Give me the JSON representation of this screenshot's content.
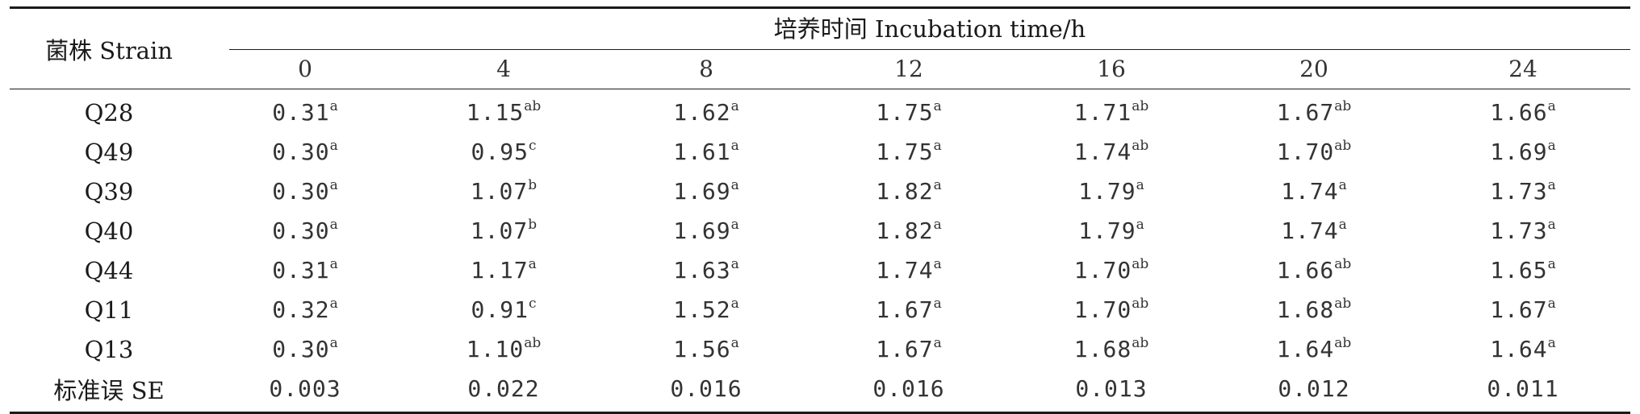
{
  "table": {
    "strain_header": "菌株 Strain",
    "time_header": "培养时间 Incubation time/h",
    "hours": [
      "0",
      "4",
      "8",
      "12",
      "16",
      "20",
      "24"
    ],
    "rows": [
      {
        "strain": "Q28",
        "cells": [
          {
            "v": "0.31",
            "s": "a"
          },
          {
            "v": "1.15",
            "s": "ab"
          },
          {
            "v": "1.62",
            "s": "a"
          },
          {
            "v": "1.75",
            "s": "a"
          },
          {
            "v": "1.71",
            "s": "ab"
          },
          {
            "v": "1.67",
            "s": "ab"
          },
          {
            "v": "1.66",
            "s": "a"
          }
        ]
      },
      {
        "strain": "Q49",
        "cells": [
          {
            "v": "0.30",
            "s": "a"
          },
          {
            "v": "0.95",
            "s": "c"
          },
          {
            "v": "1.61",
            "s": "a"
          },
          {
            "v": "1.75",
            "s": "a"
          },
          {
            "v": "1.74",
            "s": "ab"
          },
          {
            "v": "1.70",
            "s": "ab"
          },
          {
            "v": "1.69",
            "s": "a"
          }
        ]
      },
      {
        "strain": "Q39",
        "cells": [
          {
            "v": "0.30",
            "s": "a"
          },
          {
            "v": "1.07",
            "s": "b"
          },
          {
            "v": "1.69",
            "s": "a"
          },
          {
            "v": "1.82",
            "s": "a"
          },
          {
            "v": "1.79",
            "s": "a"
          },
          {
            "v": "1.74",
            "s": "a"
          },
          {
            "v": "1.73",
            "s": "a"
          }
        ]
      },
      {
        "strain": "Q40",
        "cells": [
          {
            "v": "0.30",
            "s": "a"
          },
          {
            "v": "1.07",
            "s": "b"
          },
          {
            "v": "1.69",
            "s": "a"
          },
          {
            "v": "1.82",
            "s": "a"
          },
          {
            "v": "1.79",
            "s": "a"
          },
          {
            "v": "1.74",
            "s": "a"
          },
          {
            "v": "1.73",
            "s": "a"
          }
        ]
      },
      {
        "strain": "Q44",
        "cells": [
          {
            "v": "0.31",
            "s": "a"
          },
          {
            "v": "1.17",
            "s": "a"
          },
          {
            "v": "1.63",
            "s": "a"
          },
          {
            "v": "1.74",
            "s": "a"
          },
          {
            "v": "1.70",
            "s": "ab"
          },
          {
            "v": "1.66",
            "s": "ab"
          },
          {
            "v": "1.65",
            "s": "a"
          }
        ]
      },
      {
        "strain": "Q11",
        "cells": [
          {
            "v": "0.32",
            "s": "a"
          },
          {
            "v": "0.91",
            "s": "c"
          },
          {
            "v": "1.52",
            "s": "a"
          },
          {
            "v": "1.67",
            "s": "a"
          },
          {
            "v": "1.70",
            "s": "ab"
          },
          {
            "v": "1.68",
            "s": "ab"
          },
          {
            "v": "1.67",
            "s": "a"
          }
        ]
      },
      {
        "strain": "Q13",
        "cells": [
          {
            "v": "0.30",
            "s": "a"
          },
          {
            "v": "1.10",
            "s": "ab"
          },
          {
            "v": "1.56",
            "s": "a"
          },
          {
            "v": "1.67",
            "s": "a"
          },
          {
            "v": "1.68",
            "s": "ab"
          },
          {
            "v": "1.64",
            "s": "ab"
          },
          {
            "v": "1.64",
            "s": "a"
          }
        ]
      }
    ],
    "se_row": {
      "label": "标准误 SE",
      "values": [
        "0.003",
        "0.022",
        "0.016",
        "0.016",
        "0.013",
        "0.012",
        "0.011"
      ]
    }
  }
}
